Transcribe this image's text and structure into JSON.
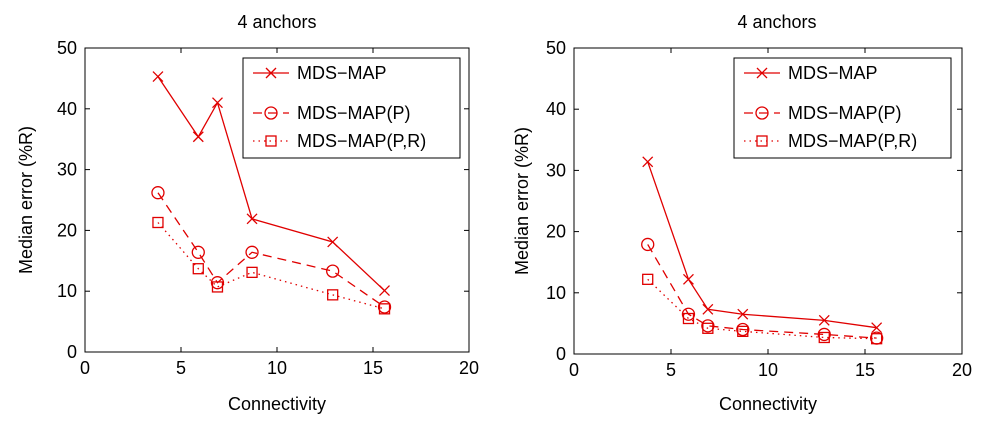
{
  "chart_data": [
    {
      "type": "line",
      "title": "4 anchors",
      "xlabel": "Connectivity",
      "ylabel": "Median error (%R)",
      "xlim": [
        0,
        20
      ],
      "ylim": [
        0,
        50
      ],
      "xticks": [
        "0",
        "5",
        "10",
        "15",
        "20"
      ],
      "yticks": [
        "0",
        "10",
        "20",
        "30",
        "40",
        "50"
      ],
      "grid": false,
      "legend_position": "top-right",
      "series": [
        {
          "name": "MDS−MAP",
          "marker": "x",
          "line": "solid",
          "color": "#e00000",
          "x": [
            3.8,
            5.9,
            6.9,
            8.7,
            12.9,
            15.6
          ],
          "y": [
            45.3,
            35.4,
            41.0,
            21.9,
            18.1,
            10.1
          ]
        },
        {
          "name": "MDS−MAP(P)",
          "marker": "circle",
          "line": "dashed",
          "color": "#e00000",
          "x": [
            3.8,
            5.9,
            6.9,
            8.7,
            12.9,
            15.6
          ],
          "y": [
            26.2,
            16.4,
            11.4,
            16.4,
            13.3,
            7.4
          ]
        },
        {
          "name": "MDS−MAP(P,R)",
          "marker": "square",
          "line": "dotted",
          "color": "#e00000",
          "x": [
            3.8,
            5.9,
            6.9,
            8.7,
            12.9,
            15.6
          ],
          "y": [
            21.3,
            13.7,
            10.7,
            13.1,
            9.4,
            7.1
          ]
        }
      ]
    },
    {
      "type": "line",
      "title": "4 anchors",
      "xlabel": "Connectivity",
      "ylabel": "Median error (%R)",
      "xlim": [
        0,
        20
      ],
      "ylim": [
        0,
        50
      ],
      "xticks": [
        "0",
        "5",
        "10",
        "15",
        "20"
      ],
      "yticks": [
        "0",
        "10",
        "20",
        "30",
        "40",
        "50"
      ],
      "grid": false,
      "legend_position": "top-right",
      "series": [
        {
          "name": "MDS−MAP",
          "marker": "x",
          "line": "solid",
          "color": "#e00000",
          "x": [
            3.8,
            5.9,
            6.9,
            8.7,
            12.9,
            15.6
          ],
          "y": [
            31.4,
            12.2,
            7.3,
            6.5,
            5.5,
            4.3
          ]
        },
        {
          "name": "MDS−MAP(P)",
          "marker": "circle",
          "line": "dashed",
          "color": "#e00000",
          "x": [
            3.8,
            5.9,
            6.9,
            8.7,
            12.9,
            15.6
          ],
          "y": [
            17.9,
            6.5,
            4.6,
            4.0,
            3.2,
            2.6
          ]
        },
        {
          "name": "MDS−MAP(P,R)",
          "marker": "square",
          "line": "dotted",
          "color": "#e00000",
          "x": [
            3.8,
            5.9,
            6.9,
            8.7,
            12.9,
            15.6
          ],
          "y": [
            12.2,
            5.8,
            4.2,
            3.7,
            2.7,
            2.5
          ]
        }
      ]
    }
  ]
}
